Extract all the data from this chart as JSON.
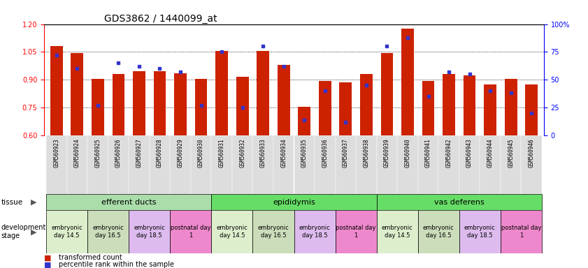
{
  "title": "GDS3862 / 1440099_at",
  "samples": [
    "GSM560923",
    "GSM560924",
    "GSM560925",
    "GSM560926",
    "GSM560927",
    "GSM560928",
    "GSM560929",
    "GSM560930",
    "GSM560931",
    "GSM560932",
    "GSM560933",
    "GSM560934",
    "GSM560935",
    "GSM560936",
    "GSM560937",
    "GSM560938",
    "GSM560939",
    "GSM560940",
    "GSM560941",
    "GSM560942",
    "GSM560943",
    "GSM560944",
    "GSM560945",
    "GSM560946"
  ],
  "transformed_count": [
    1.08,
    1.045,
    0.905,
    0.93,
    0.945,
    0.945,
    0.935,
    0.905,
    1.055,
    0.915,
    1.055,
    0.98,
    0.755,
    0.895,
    0.885,
    0.93,
    1.045,
    1.175,
    0.895,
    0.93,
    0.925,
    0.875,
    0.905,
    0.875
  ],
  "percentile_rank": [
    72,
    60,
    27,
    65,
    62,
    60,
    57,
    27,
    75,
    25,
    80,
    62,
    14,
    40,
    12,
    45,
    80,
    88,
    35,
    57,
    55,
    40,
    38,
    20
  ],
  "bar_color": "#cc2200",
  "dot_color": "#3333cc",
  "ylim_left": [
    0.6,
    1.2
  ],
  "ylim_right": [
    0,
    100
  ],
  "yticks_left": [
    0.6,
    0.75,
    0.9,
    1.05,
    1.2
  ],
  "yticks_right": [
    0,
    25,
    50,
    75,
    100
  ],
  "tissues": [
    {
      "label": "efferent ducts",
      "start": 0,
      "end": 7,
      "color": "#aaddaa"
    },
    {
      "label": "epididymis",
      "start": 8,
      "end": 15,
      "color": "#66dd66"
    },
    {
      "label": "vas deferens",
      "start": 16,
      "end": 23,
      "color": "#66dd66"
    }
  ],
  "dev_stages": [
    {
      "label": "embryonic\nday 14.5",
      "start": 0,
      "end": 1,
      "color": "#ddeecc"
    },
    {
      "label": "embryonic\nday 16.5",
      "start": 2,
      "end": 3,
      "color": "#ccddbb"
    },
    {
      "label": "embryonic\nday 18.5",
      "start": 4,
      "end": 5,
      "color": "#ddbbee"
    },
    {
      "label": "postnatal day\n1",
      "start": 6,
      "end": 7,
      "color": "#ee88cc"
    },
    {
      "label": "embryonic\nday 14.5",
      "start": 8,
      "end": 9,
      "color": "#ddeecc"
    },
    {
      "label": "embryonic\nday 16.5",
      "start": 10,
      "end": 11,
      "color": "#ccddbb"
    },
    {
      "label": "embryonic\nday 18.5",
      "start": 12,
      "end": 13,
      "color": "#ddbbee"
    },
    {
      "label": "postnatal day\n1",
      "start": 14,
      "end": 15,
      "color": "#ee88cc"
    },
    {
      "label": "embryonic\nday 14.5",
      "start": 16,
      "end": 17,
      "color": "#ddeecc"
    },
    {
      "label": "embryonic\nday 16.5",
      "start": 18,
      "end": 19,
      "color": "#ccddbb"
    },
    {
      "label": "embryonic\nday 18.5",
      "start": 20,
      "end": 21,
      "color": "#ddbbee"
    },
    {
      "label": "postnatal day\n1",
      "start": 22,
      "end": 23,
      "color": "#ee88cc"
    }
  ],
  "background_color": "#ffffff",
  "title_fontsize": 10,
  "bar_width": 0.6,
  "sample_tick_fontsize": 5.5
}
